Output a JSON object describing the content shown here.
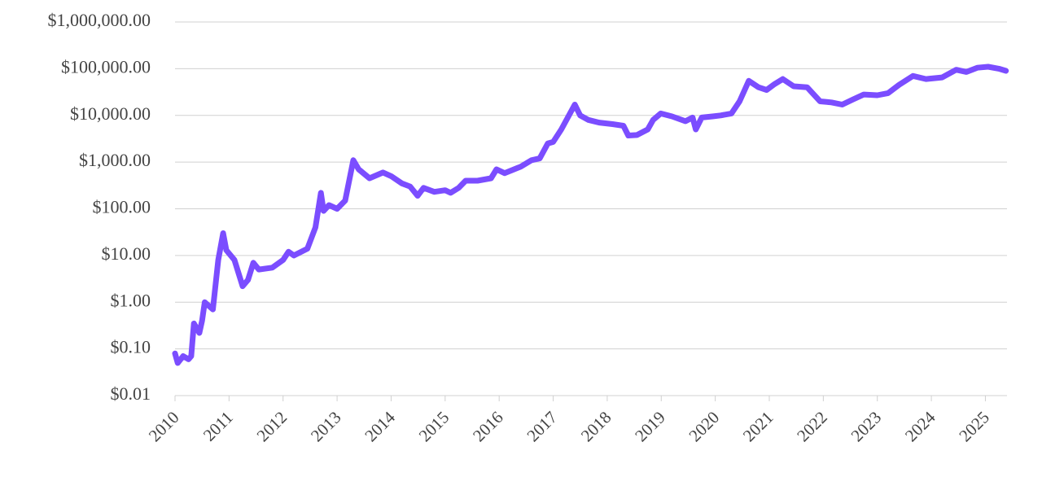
{
  "chart_data": {
    "type": "line",
    "log_scale": true,
    "grid": true,
    "xlim": [
      2010,
      2025.4
    ],
    "xticks": [
      2010,
      2011,
      2012,
      2013,
      2014,
      2015,
      2016,
      2017,
      2018,
      2019,
      2020,
      2021,
      2022,
      2023,
      2024,
      2025
    ],
    "ylim": [
      0.01,
      1000000
    ],
    "yticks": [
      {
        "value": 0.01,
        "label": "$0.01"
      },
      {
        "value": 0.1,
        "label": "$0.10"
      },
      {
        "value": 1,
        "label": "$1.00"
      },
      {
        "value": 10,
        "label": "$10.00"
      },
      {
        "value": 100,
        "label": "$100.00"
      },
      {
        "value": 1000,
        "label": "$1,000.00"
      },
      {
        "value": 10000,
        "label": "$10,000.00"
      },
      {
        "value": 100000,
        "label": "$100,000.00"
      },
      {
        "value": 1000000,
        "label": "$1,000,000.00"
      }
    ],
    "x": [
      2010.0,
      2010.05,
      2010.15,
      2010.25,
      2010.3,
      2010.35,
      2010.45,
      2010.5,
      2010.55,
      2010.7,
      2010.8,
      2010.89,
      2010.95,
      2011.1,
      2011.25,
      2011.35,
      2011.45,
      2011.55,
      2011.8,
      2012.0,
      2012.1,
      2012.2,
      2012.45,
      2012.6,
      2012.7,
      2012.75,
      2012.85,
      2013.0,
      2013.15,
      2013.3,
      2013.4,
      2013.6,
      2013.85,
      2014.0,
      2014.2,
      2014.35,
      2014.49,
      2014.6,
      2014.8,
      2015.0,
      2015.1,
      2015.25,
      2015.38,
      2015.6,
      2015.85,
      2015.95,
      2016.1,
      2016.4,
      2016.6,
      2016.75,
      2016.9,
      2017.0,
      2017.15,
      2017.4,
      2017.5,
      2017.65,
      2017.85,
      2018.1,
      2018.3,
      2018.39,
      2018.55,
      2018.75,
      2018.85,
      2018.99,
      2019.2,
      2019.45,
      2019.58,
      2019.64,
      2019.75,
      2019.95,
      2020.1,
      2020.3,
      2020.45,
      2020.62,
      2020.8,
      2020.95,
      2021.1,
      2021.25,
      2021.45,
      2021.7,
      2021.94,
      2022.15,
      2022.35,
      2022.55,
      2022.75,
      2023.0,
      2023.2,
      2023.4,
      2023.66,
      2023.9,
      2024.2,
      2024.46,
      2024.65,
      2024.85,
      2025.05,
      2025.25,
      2025.38
    ],
    "series": [
      {
        "color": "#7b4dff",
        "values": [
          0.08,
          0.05,
          0.07,
          0.06,
          0.07,
          0.35,
          0.22,
          0.4,
          1.0,
          0.7,
          8,
          30,
          13,
          8,
          2.2,
          3,
          7,
          5,
          5.5,
          8,
          12,
          10,
          14,
          40,
          220,
          90,
          120,
          100,
          150,
          1100,
          700,
          450,
          600,
          500,
          350,
          300,
          190,
          280,
          230,
          250,
          220,
          280,
          400,
          400,
          450,
          700,
          580,
          800,
          1100,
          1200,
          2500,
          2700,
          5000,
          17000,
          10000,
          8000,
          7000,
          6500,
          6000,
          3700,
          3800,
          5000,
          8000,
          11000,
          9500,
          7500,
          9000,
          5000,
          9000,
          9500,
          10000,
          11000,
          20000,
          55000,
          40000,
          35000,
          47000,
          60000,
          42000,
          40000,
          20000,
          19000,
          17000,
          22000,
          28000,
          27000,
          30000,
          45000,
          70000,
          60000,
          65000,
          95000,
          85000,
          105000,
          110000,
          100000,
          90000
        ]
      }
    ]
  }
}
